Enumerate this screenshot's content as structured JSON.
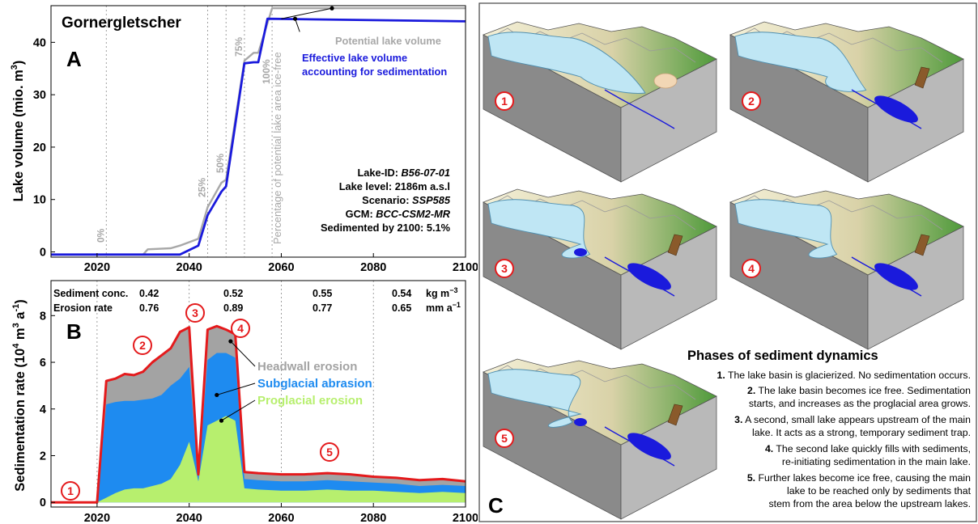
{
  "chart_data": [
    {
      "type": "line",
      "panel_letter": "A",
      "title": "Gornergletscher",
      "ylabel": "Lake volume (mio. m",
      "ylabel_sup": "3",
      "ylabel_end": ")",
      "xlim": [
        2010,
        2100
      ],
      "ylim": [
        -1,
        47
      ],
      "x_ticks": [
        2020,
        2040,
        2060,
        2080,
        2100
      ],
      "y_ticks": [
        0,
        10,
        20,
        30,
        40
      ],
      "series": [
        {
          "name": "Potential lake volume",
          "color": "#a8a8a8",
          "points": [
            [
              2010,
              -0.5
            ],
            [
              2030,
              -0.5
            ],
            [
              2031,
              0.5
            ],
            [
              2036,
              0.7
            ],
            [
              2038,
              1.2
            ],
            [
              2042,
              2.5
            ],
            [
              2044,
              8.5
            ],
            [
              2047,
              13.2
            ],
            [
              2048,
              13.8
            ],
            [
              2052,
              36.5
            ],
            [
              2054,
              38
            ],
            [
              2055,
              38
            ],
            [
              2058,
              46.5
            ],
            [
              2100,
              46.5
            ]
          ]
        },
        {
          "name": "Effective lake volume accounting for sedimentation",
          "color": "#1a1adc",
          "points": [
            [
              2010,
              -0.5
            ],
            [
              2038,
              -0.5
            ],
            [
              2042,
              1.2
            ],
            [
              2044,
              7
            ],
            [
              2047,
              11.5
            ],
            [
              2048,
              12.5
            ],
            [
              2052,
              36
            ],
            [
              2054,
              36.2
            ],
            [
              2055,
              36.2
            ],
            [
              2057,
              44.5
            ],
            [
              2100,
              44
            ]
          ]
        }
      ],
      "percent_markers": [
        {
          "x": 2022,
          "label": "0%"
        },
        {
          "x": 2044,
          "label": "25%"
        },
        {
          "x": 2048,
          "label": "50%"
        },
        {
          "x": 2052,
          "label": "75%"
        },
        {
          "x": 2058,
          "label": "100%"
        }
      ],
      "vertical_note": "Percentage of potential lake area ice-free",
      "info": {
        "lake_id_label": "Lake-ID: ",
        "lake_id": "B56-07-01",
        "level": "Lake level: 2186m a.s.l",
        "scenario_label": "Scenario: ",
        "scenario": "SSP585",
        "gcm_label": "GCM: ",
        "gcm": "BCC-CSM2-MR",
        "sedimented": "Sedimented by 2100:  5.1%"
      }
    },
    {
      "type": "area",
      "panel_letter": "B",
      "ylabel": "Sedimentation rate (10",
      "ylabel_sup1": "4",
      "ylabel_mid": " m",
      "ylabel_sup2": "3",
      "ylabel_mid2": " a",
      "ylabel_sup3": "-1",
      "ylabel_end": ")",
      "xlim": [
        2010,
        2100
      ],
      "ylim": [
        -0.2,
        9.5
      ],
      "x_ticks": [
        2020,
        2040,
        2060,
        2080,
        2100
      ],
      "y_ticks": [
        0,
        2,
        4,
        6,
        8
      ],
      "series": [
        {
          "name": "Proglacial erosion",
          "color": "#b7ef6e",
          "points": [
            [
              2010,
              0
            ],
            [
              2020,
              0
            ],
            [
              2022,
              0.2
            ],
            [
              2024,
              0.4
            ],
            [
              2026,
              0.55
            ],
            [
              2028,
              0.6
            ],
            [
              2030,
              0.6
            ],
            [
              2032,
              0.7
            ],
            [
              2034,
              0.8
            ],
            [
              2036,
              1.0
            ],
            [
              2038,
              1.6
            ],
            [
              2040,
              2.6
            ],
            [
              2042,
              0.9
            ],
            [
              2044,
              3.3
            ],
            [
              2046,
              3.5
            ],
            [
              2048,
              3.7
            ],
            [
              2050,
              3.5
            ],
            [
              2052,
              0.6
            ],
            [
              2055,
              0.55
            ],
            [
              2060,
              0.5
            ],
            [
              2065,
              0.5
            ],
            [
              2070,
              0.55
            ],
            [
              2075,
              0.5
            ],
            [
              2080,
              0.5
            ],
            [
              2085,
              0.45
            ],
            [
              2090,
              0.4
            ],
            [
              2095,
              0.45
            ],
            [
              2100,
              0.4
            ]
          ]
        },
        {
          "name": "Subglacial abrasion",
          "color": "#1e8bf0",
          "points": [
            [
              2010,
              0
            ],
            [
              2020,
              0
            ],
            [
              2022,
              4.2
            ],
            [
              2024,
              4.3
            ],
            [
              2026,
              4.35
            ],
            [
              2028,
              4.35
            ],
            [
              2030,
              4.4
            ],
            [
              2032,
              4.45
            ],
            [
              2034,
              4.6
            ],
            [
              2036,
              5.0
            ],
            [
              2038,
              5.3
            ],
            [
              2040,
              5.8
            ],
            [
              2042,
              1.0
            ],
            [
              2044,
              6.1
            ],
            [
              2046,
              6.4
            ],
            [
              2048,
              6.4
            ],
            [
              2050,
              6.2
            ],
            [
              2052,
              1.0
            ],
            [
              2055,
              0.95
            ],
            [
              2060,
              0.9
            ],
            [
              2065,
              0.9
            ],
            [
              2070,
              0.95
            ],
            [
              2075,
              0.9
            ],
            [
              2080,
              0.85
            ],
            [
              2085,
              0.8
            ],
            [
              2090,
              0.7
            ],
            [
              2095,
              0.75
            ],
            [
              2100,
              0.7
            ]
          ]
        },
        {
          "name": "Headwall erosion",
          "color": "#a3a3a3",
          "points": [
            [
              2010,
              0
            ],
            [
              2020,
              0
            ],
            [
              2022,
              5.2
            ],
            [
              2024,
              5.3
            ],
            [
              2026,
              5.5
            ],
            [
              2028,
              5.45
            ],
            [
              2030,
              5.6
            ],
            [
              2032,
              6.0
            ],
            [
              2034,
              6.3
            ],
            [
              2036,
              6.6
            ],
            [
              2038,
              7.3
            ],
            [
              2040,
              7.5
            ],
            [
              2042,
              1.2
            ],
            [
              2044,
              7.4
            ],
            [
              2046,
              7.55
            ],
            [
              2048,
              7.4
            ],
            [
              2050,
              7.2
            ],
            [
              2052,
              1.3
            ],
            [
              2055,
              1.25
            ],
            [
              2060,
              1.2
            ],
            [
              2065,
              1.2
            ],
            [
              2070,
              1.25
            ],
            [
              2075,
              1.2
            ],
            [
              2080,
              1.1
            ],
            [
              2085,
              1.05
            ],
            [
              2090,
              0.95
            ],
            [
              2095,
              1.0
            ],
            [
              2100,
              0.9
            ]
          ]
        }
      ],
      "outline_color": "#e41a1c",
      "stats": {
        "row1_label": "Sediment conc.",
        "row1_values": [
          "0.42",
          "0.52",
          "0.55",
          "0.54"
        ],
        "row1_unit": "kg m",
        "row1_unit_sup": "−3",
        "row2_label": "Erosion rate",
        "row2_values": [
          "0.76",
          "0.89",
          "0.77",
          "0.65"
        ],
        "row2_unit": "mm a",
        "row2_unit_sup": "−1"
      },
      "phase_markers": [
        "1",
        "2",
        "3",
        "4",
        "5"
      ]
    }
  ],
  "panel_c": {
    "letter": "C",
    "heading": "Phases of sediment dynamics",
    "steps": [
      {
        "num": "1.",
        "line1": " The lake basin is glacierized. No sedimentation occurs."
      },
      {
        "num": "2.",
        "line1": " The lake basin becomes ice free. Sedimentation",
        "line2": "starts, and increases as the proglacial area grows."
      },
      {
        "num": "3.",
        "line1": " A second, small lake appears upstream of the main",
        "line2": "lake. It acts as a strong, temporary sediment trap."
      },
      {
        "num": "4.",
        "line1": " The second lake quickly fills with sediments,",
        "line2": "re-initiating sedimentation in the main lake."
      },
      {
        "num": "5.",
        "line1": " Further lakes become ice free, causing the main",
        "line2": "lake to be reached only by sediments that",
        "line3": "stem from the area below the upstream lakes."
      }
    ],
    "block_labels": [
      "1",
      "2",
      "3",
      "4",
      "5"
    ]
  }
}
